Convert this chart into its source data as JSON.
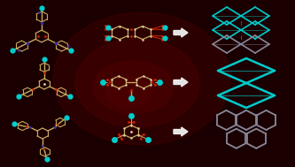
{
  "bg_dark": "#2a0000",
  "bg_mid": "#5a0000",
  "cyan": "#00cccc",
  "white": "#f0f0f0",
  "bond": "#c8a860",
  "node_light": "#ddd0b0",
  "red_atom": "#cc2200",
  "blue_atom": "#3030aa",
  "gray_atom": "#aaaaaa",
  "topo_cyan": "#00cccc",
  "topo_gray": "#888899",
  "figsize": [
    3.33,
    1.89
  ],
  "dpi": 100
}
